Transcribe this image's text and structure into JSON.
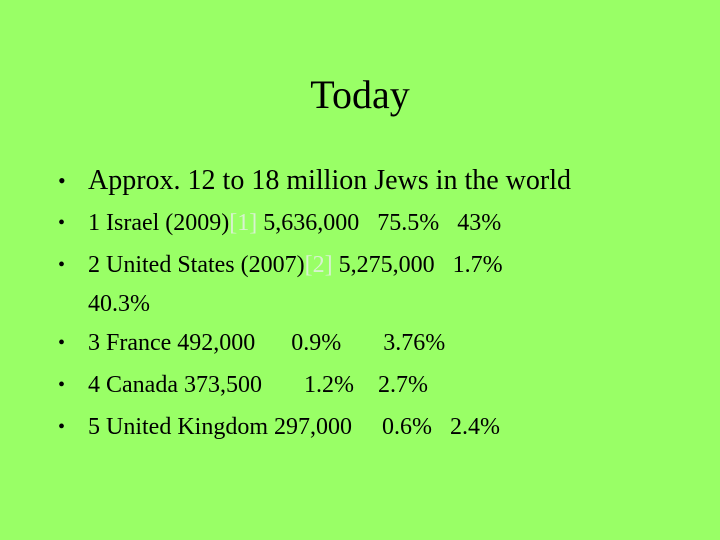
{
  "slide": {
    "title": "Today",
    "bullet_glyph": "•",
    "items": [
      {
        "text": "Approx. 12 to 18 million Jews in the world"
      },
      {
        "rank_country": "1 Israel (2009)",
        "ref": "[1]",
        "population": "5,636,000",
        "pct_country": "75.5%",
        "pct_world": "43%"
      },
      {
        "rank_country": "2 United States (2007)",
        "ref": "[2]",
        "population": "5,275,000",
        "pct_country": "1.7%",
        "pct_world": "40.3%"
      },
      {
        "rank_country": "3 France",
        "population": "492,000",
        "pct_country": "0.9%",
        "pct_world": "3.76%"
      },
      {
        "rank_country": "4 Canada",
        "population": "373,500",
        "pct_country": "1.2%",
        "pct_world": "2.7%"
      },
      {
        "rank_country": "5 United Kingdom",
        "population": "297,000",
        "pct_country": "0.6%",
        "pct_world": "2.4%"
      }
    ]
  },
  "colors": {
    "background": "#99ff66",
    "text": "#000000",
    "reference_link": "#d8f2d0"
  }
}
